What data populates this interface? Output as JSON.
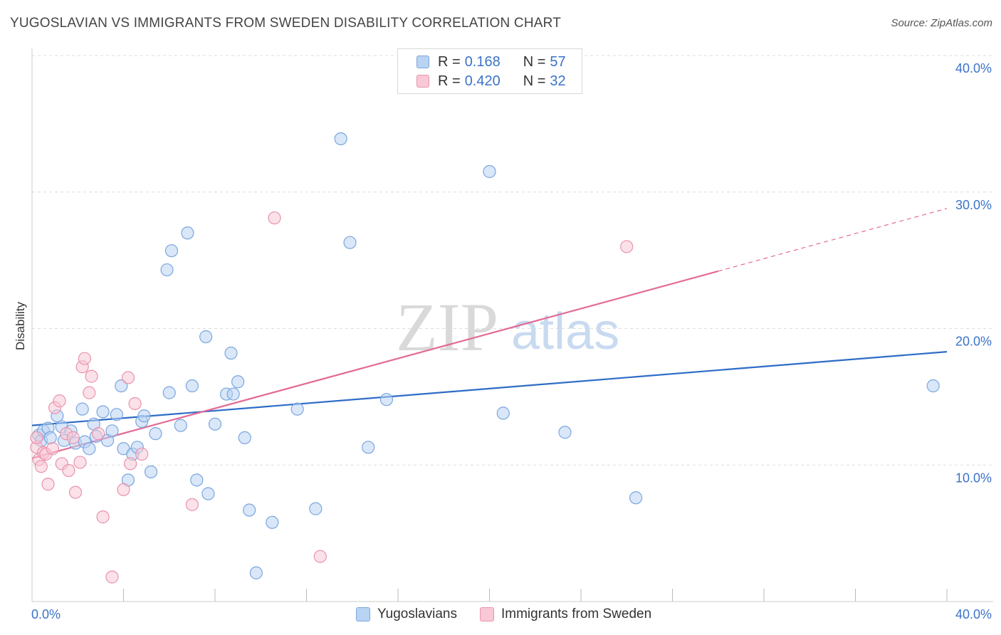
{
  "header": {
    "title": "YUGOSLAVIAN VS IMMIGRANTS FROM SWEDEN DISABILITY CORRELATION CHART",
    "source": "Source: ZipAtlas.com"
  },
  "legend_top": [
    {
      "r_label": "R =",
      "r_value": "0.168",
      "n_label": "N =",
      "n_value": "57"
    },
    {
      "r_label": "R =",
      "r_value": "0.420",
      "n_label": "N =",
      "n_value": "32"
    }
  ],
  "legend_bottom": [
    "Yugoslavians",
    "Immigrants from Sweden"
  ],
  "watermark": {
    "zip": "ZIP",
    "atlas": "atlas"
  },
  "colors": {
    "blue_fill": "#b9d3f2",
    "blue_stroke": "#7aa6e0",
    "blue_line": "#2f6cc7",
    "pink_fill": "#f8c8d6",
    "pink_stroke": "#ea93ae",
    "pink_line": "#e36b95",
    "tick_text": "#3b73c8",
    "grid": "#dddddd"
  },
  "chart_data": {
    "type": "scatter",
    "xlabel": "",
    "ylabel": "Disability",
    "xlim": [
      0,
      40
    ],
    "ylim": [
      0,
      40
    ],
    "x_tick_labels": [
      "0.0%",
      "40.0%"
    ],
    "y_tick_labels": [
      "10.0%",
      "20.0%",
      "30.0%",
      "40.0%"
    ],
    "y_ticks": [
      10,
      20,
      30,
      40
    ],
    "grid": true,
    "series": [
      {
        "name": "Yugoslavians",
        "color": "blue",
        "points": [
          [
            0.3,
            12.2
          ],
          [
            0.4,
            11.8
          ],
          [
            0.5,
            12.5
          ],
          [
            0.7,
            12.7
          ],
          [
            0.8,
            12.0
          ],
          [
            1.1,
            13.6
          ],
          [
            1.3,
            12.8
          ],
          [
            1.4,
            11.8
          ],
          [
            1.7,
            12.5
          ],
          [
            1.9,
            11.6
          ],
          [
            2.2,
            14.1
          ],
          [
            2.3,
            11.7
          ],
          [
            2.5,
            11.2
          ],
          [
            2.7,
            13.0
          ],
          [
            2.8,
            12.1
          ],
          [
            3.1,
            13.9
          ],
          [
            3.3,
            11.8
          ],
          [
            3.5,
            12.5
          ],
          [
            3.7,
            13.7
          ],
          [
            3.9,
            15.8
          ],
          [
            4.0,
            11.2
          ],
          [
            4.2,
            8.9
          ],
          [
            4.4,
            10.8
          ],
          [
            4.6,
            11.3
          ],
          [
            4.8,
            13.2
          ],
          [
            4.9,
            13.6
          ],
          [
            5.2,
            9.5
          ],
          [
            5.4,
            12.3
          ],
          [
            5.9,
            24.3
          ],
          [
            6.1,
            25.7
          ],
          [
            6.5,
            12.9
          ],
          [
            6.8,
            27.0
          ],
          [
            7.0,
            15.8
          ],
          [
            7.2,
            8.9
          ],
          [
            7.6,
            19.4
          ],
          [
            7.7,
            7.9
          ],
          [
            8.0,
            13.0
          ],
          [
            8.5,
            15.2
          ],
          [
            8.7,
            18.2
          ],
          [
            8.8,
            15.2
          ],
          [
            9.0,
            16.1
          ],
          [
            9.3,
            12.0
          ],
          [
            9.5,
            6.7
          ],
          [
            9.8,
            2.1
          ],
          [
            10.5,
            5.8
          ],
          [
            11.6,
            14.1
          ],
          [
            12.4,
            6.8
          ],
          [
            13.5,
            33.9
          ],
          [
            13.9,
            26.3
          ],
          [
            14.7,
            11.3
          ],
          [
            15.5,
            14.8
          ],
          [
            20.0,
            31.5
          ],
          [
            20.6,
            13.8
          ],
          [
            23.3,
            12.4
          ],
          [
            26.4,
            7.6
          ],
          [
            39.4,
            15.8
          ],
          [
            6.0,
            15.3
          ]
        ]
      },
      {
        "name": "Immigrants from Sweden",
        "color": "pink",
        "points": [
          [
            0.2,
            11.3
          ],
          [
            0.3,
            10.4
          ],
          [
            0.4,
            9.9
          ],
          [
            0.5,
            10.9
          ],
          [
            0.6,
            10.8
          ],
          [
            0.7,
            8.6
          ],
          [
            0.9,
            11.2
          ],
          [
            1.0,
            14.2
          ],
          [
            1.2,
            14.7
          ],
          [
            1.3,
            10.1
          ],
          [
            1.5,
            12.3
          ],
          [
            1.6,
            9.6
          ],
          [
            1.8,
            12.0
          ],
          [
            1.9,
            8.0
          ],
          [
            2.1,
            10.2
          ],
          [
            2.2,
            17.2
          ],
          [
            2.3,
            17.8
          ],
          [
            2.5,
            15.3
          ],
          [
            2.6,
            16.5
          ],
          [
            2.9,
            12.3
          ],
          [
            3.1,
            6.2
          ],
          [
            3.5,
            1.8
          ],
          [
            4.0,
            8.2
          ],
          [
            4.2,
            16.4
          ],
          [
            4.3,
            10.1
          ],
          [
            4.5,
            14.5
          ],
          [
            4.8,
            10.8
          ],
          [
            7.0,
            7.1
          ],
          [
            10.6,
            28.1
          ],
          [
            12.6,
            3.3
          ],
          [
            26.0,
            26.0
          ],
          [
            0.2,
            12.0
          ]
        ]
      }
    ],
    "trendlines": [
      {
        "series": "Yugoslavians",
        "x": [
          0,
          40
        ],
        "y": [
          12.9,
          18.3
        ],
        "style": "solid"
      },
      {
        "series": "Immigrants from Sweden",
        "x": [
          0,
          30
        ],
        "y": [
          10.5,
          24.2
        ],
        "style": "solid"
      },
      {
        "series": "Immigrants from Sweden",
        "x": [
          30,
          40
        ],
        "y": [
          24.2,
          28.8
        ],
        "style": "dashed"
      }
    ]
  }
}
